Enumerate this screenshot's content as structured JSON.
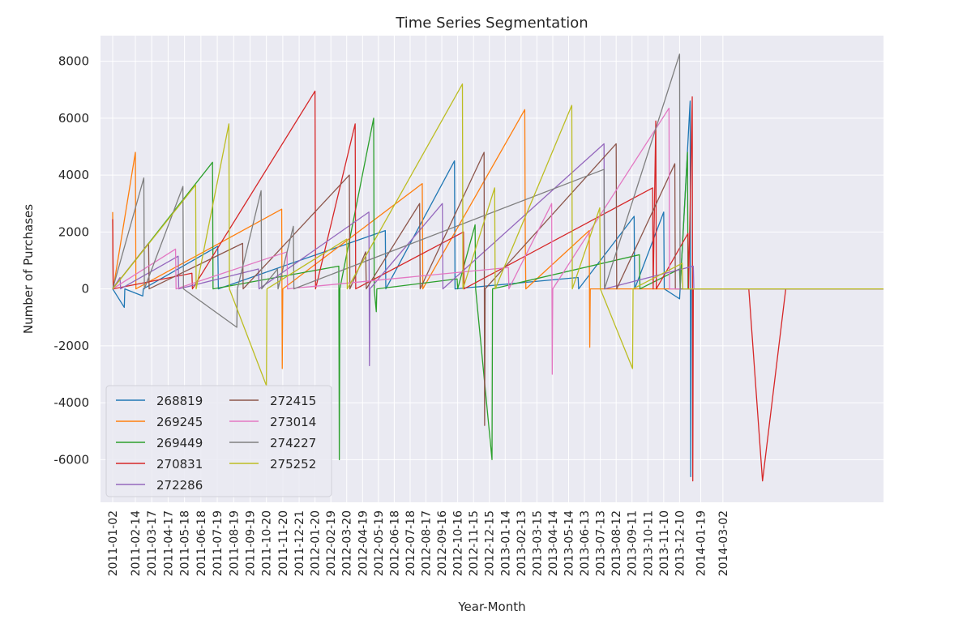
{
  "chart_data": {
    "type": "line",
    "title": "Time Series Segmentation",
    "xlabel": "Year-Month",
    "ylabel": "Number of Purchases",
    "xlim": [
      "2010-12-10",
      "2014-12-31"
    ],
    "ylim": [
      -7500,
      8900
    ],
    "y_ticks": [
      -6000,
      -4000,
      -2000,
      0,
      2000,
      4000,
      6000,
      8000
    ],
    "x_tick_labels": [
      "2011-01-02",
      "2011-02-14",
      "2011-03-17",
      "2011-04-17",
      "2011-05-18",
      "2011-06-18",
      "2011-07-19",
      "2011-08-19",
      "2011-09-19",
      "2011-10-20",
      "2011-11-20",
      "2011-12-21",
      "2012-01-20",
      "2012-02-19",
      "2012-03-20",
      "2012-04-19",
      "2012-05-19",
      "2012-06-18",
      "2012-07-18",
      "2012-08-17",
      "2012-09-16",
      "2012-10-16",
      "2012-11-15",
      "2012-12-15",
      "2013-01-14",
      "2013-02-13",
      "2013-03-15",
      "2013-04-14",
      "2013-05-14",
      "2013-06-13",
      "2013-07-13",
      "2013-08-12",
      "2013-09-11",
      "2013-10-11",
      "2013-11-10",
      "2013-12-10",
      "2014-01-19",
      "2014-03-02"
    ],
    "grid": true,
    "legend_position": "lower-left",
    "legend_columns": 2,
    "series": [
      {
        "name": "268819",
        "color": "#1f77b4",
        "points": [
          [
            "2011-01-02",
            0
          ],
          [
            "2011-01-24",
            -650
          ],
          [
            "2011-01-25",
            0
          ],
          [
            "2011-02-28",
            -250
          ],
          [
            "2011-03-01",
            0
          ],
          [
            "2011-07-20",
            1500
          ],
          [
            "2011-07-21",
            0
          ],
          [
            "2012-06-01",
            2050
          ],
          [
            "2012-06-02",
            0
          ],
          [
            "2012-10-10",
            4500
          ],
          [
            "2012-10-11",
            0
          ],
          [
            "2013-06-01",
            400
          ],
          [
            "2013-06-02",
            0
          ],
          [
            "2013-09-15",
            2550
          ],
          [
            "2013-09-16",
            0
          ],
          [
            "2013-11-10",
            2700
          ],
          [
            "2013-11-11",
            0
          ],
          [
            "2013-12-10",
            -350
          ],
          [
            "2013-12-11",
            0
          ],
          [
            "2013-12-30",
            6600
          ],
          [
            "2013-12-31",
            -6600
          ],
          [
            "2014-01-01",
            0
          ],
          [
            "2014-12-31",
            0
          ]
        ]
      },
      {
        "name": "269245",
        "color": "#ff7f0e",
        "points": [
          [
            "2011-01-02",
            2700
          ],
          [
            "2011-01-03",
            0
          ],
          [
            "2011-02-14",
            4800
          ],
          [
            "2011-02-15",
            0
          ],
          [
            "2011-11-18",
            2800
          ],
          [
            "2011-11-19",
            -2800
          ],
          [
            "2011-11-20",
            0
          ],
          [
            "2012-08-10",
            3700
          ],
          [
            "2012-08-11",
            0
          ],
          [
            "2013-02-20",
            6300
          ],
          [
            "2013-02-21",
            1700
          ],
          [
            "2013-02-22",
            0
          ],
          [
            "2013-06-22",
            2050
          ],
          [
            "2013-06-23",
            -2050
          ],
          [
            "2013-06-24",
            0
          ],
          [
            "2014-12-31",
            0
          ]
        ]
      },
      {
        "name": "269449",
        "color": "#2ca02c",
        "points": [
          [
            "2011-01-02",
            0
          ],
          [
            "2011-07-10",
            4450
          ],
          [
            "2011-07-11",
            0
          ],
          [
            "2012-03-05",
            800
          ],
          [
            "2012-03-06",
            -6000
          ],
          [
            "2012-03-07",
            0
          ],
          [
            "2012-05-10",
            6000
          ],
          [
            "2012-05-11",
            0
          ],
          [
            "2012-05-15",
            -800
          ],
          [
            "2012-05-16",
            0
          ],
          [
            "2012-10-15",
            350
          ],
          [
            "2012-10-16",
            0
          ],
          [
            "2012-11-18",
            2250
          ],
          [
            "2012-11-19",
            0
          ],
          [
            "2012-12-20",
            -6000
          ],
          [
            "2012-12-21",
            0
          ],
          [
            "2013-09-25",
            1200
          ],
          [
            "2013-09-26",
            0
          ],
          [
            "2013-12-10",
            700
          ],
          [
            "2013-12-11",
            0
          ],
          [
            "2013-12-25",
            4800
          ],
          [
            "2013-12-26",
            0
          ],
          [
            "2014-12-31",
            0
          ]
        ]
      },
      {
        "name": "270831",
        "color": "#d62728",
        "points": [
          [
            "2011-01-02",
            2450
          ],
          [
            "2011-01-03",
            0
          ],
          [
            "2011-06-01",
            550
          ],
          [
            "2011-06-02",
            0
          ],
          [
            "2012-01-20",
            6950
          ],
          [
            "2012-01-21",
            0
          ],
          [
            "2012-04-05",
            5800
          ],
          [
            "2012-04-06",
            0
          ],
          [
            "2012-10-27",
            2000
          ],
          [
            "2012-10-28",
            0
          ],
          [
            "2013-10-20",
            3550
          ],
          [
            "2013-10-21",
            0
          ],
          [
            "2013-10-26",
            5900
          ],
          [
            "2013-10-27",
            0
          ],
          [
            "2013-12-26",
            1950
          ],
          [
            "2013-12-27",
            0
          ],
          [
            "2014-01-03",
            6750
          ],
          [
            "2014-01-04",
            -6750
          ],
          [
            "2014-01-05",
            0
          ],
          [
            "2014-03-02",
            0
          ],
          [
            "2014-04-20",
            0
          ],
          [
            "2014-05-16",
            -6750
          ],
          [
            "2014-06-29",
            0
          ],
          [
            "2014-12-31",
            0
          ]
        ]
      },
      {
        "name": "272286",
        "color": "#9467bd",
        "points": [
          [
            "2011-01-02",
            0
          ],
          [
            "2011-01-16",
            400
          ],
          [
            "2011-01-17",
            0
          ],
          [
            "2011-05-06",
            1150
          ],
          [
            "2011-05-07",
            0
          ],
          [
            "2011-10-05",
            700
          ],
          [
            "2011-10-06",
            0
          ],
          [
            "2012-05-01",
            2700
          ],
          [
            "2012-05-02",
            -2700
          ],
          [
            "2012-05-03",
            0
          ],
          [
            "2012-09-17",
            3000
          ],
          [
            "2012-09-18",
            0
          ],
          [
            "2013-07-20",
            5100
          ],
          [
            "2013-07-21",
            0
          ],
          [
            "2014-01-05",
            800
          ],
          [
            "2014-01-06",
            0
          ],
          [
            "2014-12-31",
            0
          ]
        ]
      },
      {
        "name": "272415",
        "color": "#8c564b",
        "points": [
          [
            "2011-01-02",
            0
          ],
          [
            "2011-03-11",
            1600
          ],
          [
            "2011-03-12",
            0
          ],
          [
            "2011-09-05",
            1600
          ],
          [
            "2011-09-06",
            0
          ],
          [
            "2012-03-25",
            4000
          ],
          [
            "2012-03-26",
            0
          ],
          [
            "2012-04-25",
            1300
          ],
          [
            "2012-04-26",
            0
          ],
          [
            "2012-08-05",
            3000
          ],
          [
            "2012-08-06",
            0
          ],
          [
            "2012-12-05",
            4800
          ],
          [
            "2012-12-06",
            -4800
          ],
          [
            "2012-12-07",
            0
          ],
          [
            "2013-08-12",
            5100
          ],
          [
            "2013-08-13",
            0
          ],
          [
            "2013-12-01",
            4400
          ],
          [
            "2013-12-02",
            0
          ],
          [
            "2014-12-31",
            0
          ]
        ]
      },
      {
        "name": "273014",
        "color": "#e377c2",
        "points": [
          [
            "2011-01-02",
            0
          ],
          [
            "2011-05-01",
            1400
          ],
          [
            "2011-05-02",
            0
          ],
          [
            "2011-11-28",
            1300
          ],
          [
            "2011-11-29",
            0
          ],
          [
            "2013-01-20",
            750
          ],
          [
            "2013-01-21",
            0
          ],
          [
            "2013-04-12",
            3000
          ],
          [
            "2013-04-13",
            -3000
          ],
          [
            "2013-04-14",
            0
          ],
          [
            "2013-11-20",
            6350
          ],
          [
            "2013-11-21",
            0
          ],
          [
            "2014-12-31",
            0
          ]
        ]
      },
      {
        "name": "274227",
        "color": "#7f7f7f",
        "points": [
          [
            "2011-01-02",
            0
          ],
          [
            "2011-03-02",
            3900
          ],
          [
            "2011-03-03",
            0
          ],
          [
            "2011-05-15",
            3600
          ],
          [
            "2011-05-16",
            0
          ],
          [
            "2011-08-25",
            -1350
          ],
          [
            "2011-08-26",
            0
          ],
          [
            "2011-10-10",
            3450
          ],
          [
            "2011-10-11",
            0
          ],
          [
            "2011-11-10",
            700
          ],
          [
            "2011-11-11",
            0
          ],
          [
            "2011-12-10",
            2200
          ],
          [
            "2011-12-11",
            0
          ],
          [
            "2013-07-20",
            4200
          ],
          [
            "2013-07-21",
            0
          ],
          [
            "2013-12-10",
            8250
          ],
          [
            "2013-12-11",
            0
          ],
          [
            "2014-12-31",
            0
          ]
        ]
      },
      {
        "name": "275252",
        "color": "#bcbd22",
        "points": [
          [
            "2011-01-02",
            0
          ],
          [
            "2011-06-08",
            3650
          ],
          [
            "2011-06-09",
            0
          ],
          [
            "2011-08-10",
            5800
          ],
          [
            "2011-08-11",
            0
          ],
          [
            "2011-10-20",
            -3400
          ],
          [
            "2011-10-21",
            0
          ],
          [
            "2012-03-20",
            1750
          ],
          [
            "2012-03-21",
            0
          ],
          [
            "2012-10-25",
            7200
          ],
          [
            "2012-10-26",
            0
          ],
          [
            "2012-12-25",
            3550
          ],
          [
            "2012-12-26",
            0
          ],
          [
            "2013-05-20",
            6450
          ],
          [
            "2013-05-21",
            0
          ],
          [
            "2013-07-12",
            2850
          ],
          [
            "2013-07-13",
            0
          ],
          [
            "2013-09-12",
            -2800
          ],
          [
            "2013-09-13",
            0
          ],
          [
            "2013-12-15",
            900
          ],
          [
            "2013-12-16",
            0
          ],
          [
            "2014-12-31",
            0
          ]
        ]
      }
    ]
  }
}
